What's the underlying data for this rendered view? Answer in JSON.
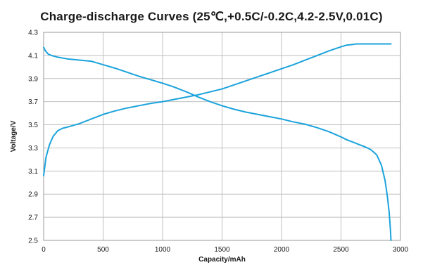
{
  "chart_data": {
    "type": "line",
    "title": "Charge-discharge Curves (25℃,+0.5C/-0.2C,4.2-2.5V,0.01C)",
    "xlabel": "Capacity/mAh",
    "ylabel": "Voltage/V",
    "xlim": [
      0,
      3000
    ],
    "ylim": [
      2.5,
      4.3
    ],
    "xticks": [
      0,
      500,
      1000,
      1500,
      2000,
      2500,
      3000
    ],
    "yticks": [
      2.5,
      2.7,
      2.9,
      3.1,
      3.3,
      3.5,
      3.7,
      3.9,
      4.1,
      4.3
    ],
    "grid": true,
    "legend": "none",
    "line_color": "#1ba3dc",
    "series": [
      {
        "x": [
          0,
          20,
          50,
          80,
          120,
          160,
          200,
          300,
          400,
          500,
          600,
          700,
          800,
          900,
          1000,
          1100,
          1200,
          1300,
          1400,
          1500,
          1600,
          1700,
          1800,
          1900,
          2000,
          2100,
          2200,
          2300,
          2400,
          2500,
          2550,
          2600,
          2630,
          2700,
          2800,
          2920
        ],
        "values": [
          3.06,
          3.22,
          3.33,
          3.4,
          3.45,
          3.47,
          3.48,
          3.51,
          3.55,
          3.59,
          3.62,
          3.645,
          3.665,
          3.685,
          3.7,
          3.72,
          3.74,
          3.76,
          3.785,
          3.81,
          3.845,
          3.88,
          3.915,
          3.95,
          3.985,
          4.02,
          4.06,
          4.1,
          4.14,
          4.175,
          4.19,
          4.195,
          4.2,
          4.2,
          4.2,
          4.2
        ]
      },
      {
        "x": [
          0,
          15,
          40,
          80,
          120,
          200,
          300,
          400,
          450,
          500,
          600,
          700,
          800,
          900,
          1000,
          1100,
          1200,
          1300,
          1400,
          1500,
          1600,
          1700,
          1800,
          1900,
          2000,
          2100,
          2200,
          2300,
          2400,
          2500,
          2550,
          2600,
          2650,
          2700,
          2750,
          2800,
          2840,
          2870,
          2890,
          2905,
          2915,
          2920
        ],
        "values": [
          4.17,
          4.14,
          4.11,
          4.095,
          4.085,
          4.07,
          4.06,
          4.05,
          4.035,
          4.02,
          3.99,
          3.955,
          3.92,
          3.89,
          3.86,
          3.825,
          3.785,
          3.74,
          3.7,
          3.665,
          3.635,
          3.61,
          3.59,
          3.57,
          3.55,
          3.525,
          3.505,
          3.475,
          3.44,
          3.395,
          3.37,
          3.35,
          3.33,
          3.31,
          3.285,
          3.24,
          3.15,
          3.02,
          2.88,
          2.74,
          2.6,
          2.5
        ]
      }
    ]
  }
}
